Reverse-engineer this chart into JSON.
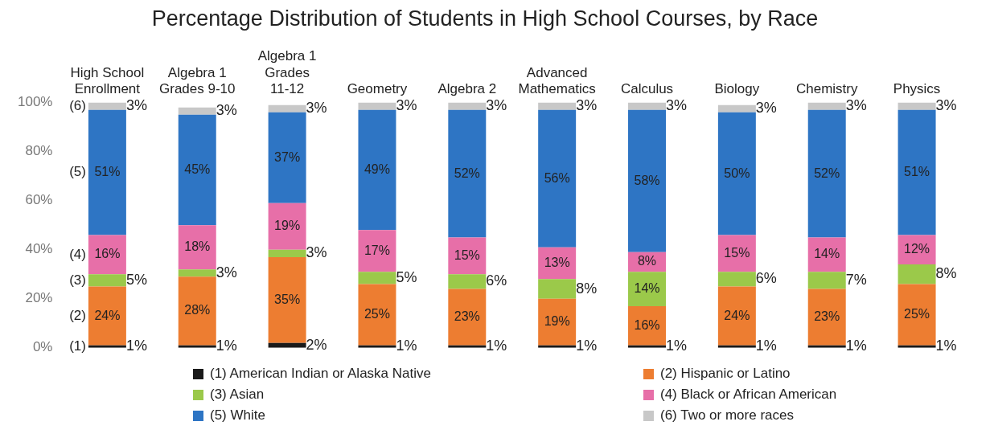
{
  "chart_data": {
    "type": "bar",
    "stacked": true,
    "title": "Percentage Distribution of Students in High School Courses, by Race",
    "categories": [
      "High School Enrollment",
      "Algebra 1 Grades 9-10",
      "Algebra 1 Grades 11-12",
      "Geometry",
      "Algebra 2",
      "Advanced Mathematics",
      "Calculus",
      "Biology",
      "Chemistry",
      "Physics"
    ],
    "series": [
      {
        "name": "(1) American Indian or Alaska Native",
        "color": "#1a1a1a",
        "values": [
          1,
          1,
          2,
          1,
          1,
          1,
          1,
          1,
          1,
          1
        ],
        "value_labels": [
          "1%",
          "1%",
          "2%",
          "1%",
          "1%",
          "1%",
          "1%",
          "1%",
          "1%",
          "1%"
        ]
      },
      {
        "name": "(2) Hispanic or Latino",
        "color": "#ed7d31",
        "values": [
          24,
          28,
          35,
          25,
          23,
          19,
          16,
          24,
          23,
          25
        ],
        "value_labels": [
          "24%",
          "28%",
          "35%",
          "25%",
          "23%",
          "19%",
          "16%",
          "24%",
          "23%",
          "25%"
        ]
      },
      {
        "name": "(3) Asian",
        "color": "#9bc94a",
        "values": [
          5,
          3,
          3,
          5,
          6,
          8,
          14,
          6,
          7,
          8
        ],
        "value_labels": [
          "5%",
          "3%",
          "3%",
          "5%",
          "6%",
          "8%",
          "14%",
          "6%",
          "7%",
          "8%"
        ]
      },
      {
        "name": "(4) Black or African American",
        "color": "#e76fa8",
        "values": [
          16,
          18,
          19,
          17,
          15,
          13,
          8,
          15,
          14,
          12
        ],
        "value_labels": [
          "16%",
          "18%",
          "19%",
          "17%",
          "15%",
          "13%",
          "8%",
          "15%",
          "14%",
          "12%"
        ]
      },
      {
        "name": "(5) White",
        "color": "#2e75c4",
        "values": [
          51,
          45,
          37,
          49,
          52,
          56,
          58,
          50,
          52,
          51
        ],
        "value_labels": [
          "51%",
          "45%",
          "37%",
          "49%",
          "52%",
          "56%",
          "58%",
          "50%",
          "52%",
          "51%"
        ]
      },
      {
        "name": "(6) Two or more races",
        "color": "#c8c8c8",
        "values": [
          3,
          3,
          3,
          3,
          3,
          3,
          3,
          3,
          3,
          3
        ],
        "value_labels": [
          "3%",
          "3%",
          "3%",
          "3%",
          "3%",
          "3%",
          "3%",
          "3%",
          "3%",
          "3%"
        ]
      }
    ],
    "ylim": [
      0,
      100
    ],
    "yticks": [
      {
        "value": 0,
        "label": "0%"
      },
      {
        "value": 20,
        "label": "20%"
      },
      {
        "value": 40,
        "label": "40%"
      },
      {
        "value": 60,
        "label": "60%"
      },
      {
        "value": 80,
        "label": "80%"
      },
      {
        "value": 100,
        "label": "100%"
      }
    ],
    "grid": false,
    "legend": "bottom",
    "annotations": [
      "(1)",
      "(2)",
      "(3)",
      "(4)",
      "(5)",
      "(6)"
    ]
  }
}
